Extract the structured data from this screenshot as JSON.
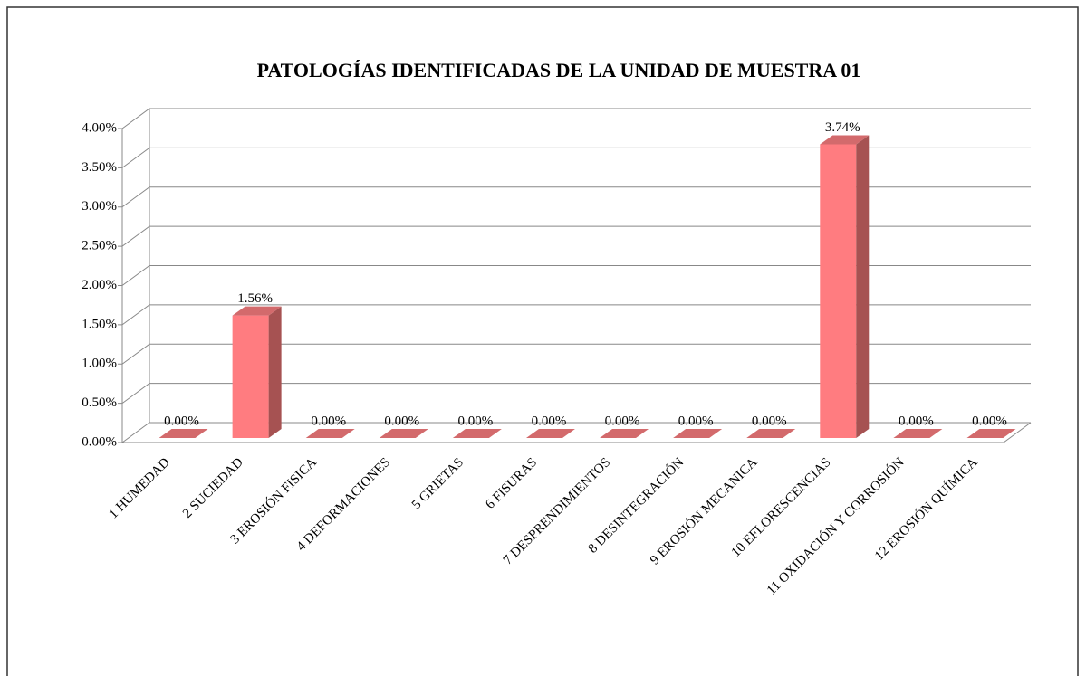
{
  "chart_data": {
    "type": "bar3d",
    "title": "PATOLOGÍAS  IDENTIFICADAS  DE LA  UNIDAD  DE MUESTRA  01",
    "categories": [
      "1 HUMEDAD",
      "2 SUCIEDAD",
      "3 EROSIÓN  FISICA",
      "4 DEFORMACIONES",
      "5 GRIETAS",
      "6 FISURAS",
      "7 DESPRENDIMIENTOS",
      "8 DESINTEGRACIÓN",
      "9 EROSIÓN MECANICA",
      "10 EFLORESCENCIAS",
      "11 OXIDACIÓN Y CORROSIÓN",
      "12 EROSIÓN QUÍMICA"
    ],
    "values": [
      0,
      1.56,
      0,
      0,
      0,
      0,
      0,
      0,
      0,
      3.74,
      0,
      0
    ],
    "value_labels": [
      "0.00%",
      "1.56%",
      "0.00%",
      "0.00%",
      "0.00%",
      "0.00%",
      "0.00%",
      "0.00%",
      "0.00%",
      "3.74%",
      "0.00%",
      "0.00%"
    ],
    "color": "#ff7c80",
    "ylim": [
      0,
      4
    ],
    "yticks": [
      {
        "value": 0,
        "label": "0.00%"
      },
      {
        "value": 0.5,
        "label": "0.50%"
      },
      {
        "value": 1,
        "label": "1.00%"
      },
      {
        "value": 1.5,
        "label": "1.50%"
      },
      {
        "value": 2,
        "label": "2.00%"
      },
      {
        "value": 2.5,
        "label": "2.50%"
      },
      {
        "value": 3,
        "label": "3.00%"
      },
      {
        "value": 3.5,
        "label": "3.50%"
      },
      {
        "value": 4,
        "label": "4.00%"
      }
    ],
    "grid": true
  }
}
